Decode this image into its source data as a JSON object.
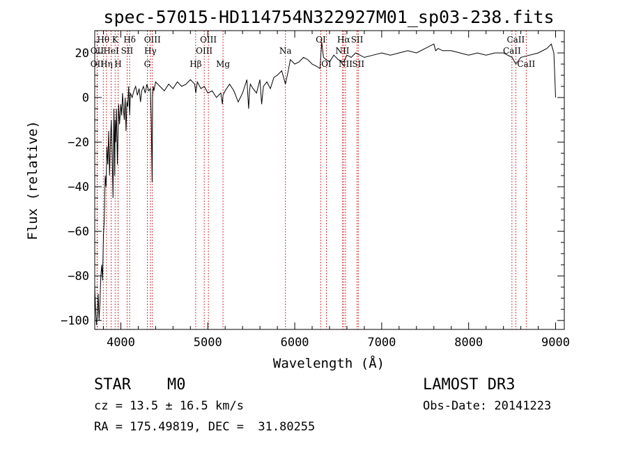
{
  "chart_data": {
    "type": "line",
    "title": "spec-57015-HD114754N322927M01_sp03-238.fits",
    "xlabel": "Wavelength (Å)",
    "ylabel": "Flux (relative)",
    "xlim": [
      3700,
      9100
    ],
    "ylim": [
      -104,
      30
    ],
    "x_ticks": [
      4000,
      5000,
      6000,
      7000,
      8000,
      9000
    ],
    "y_ticks": [
      -100,
      -80,
      -60,
      -40,
      -20,
      0,
      20
    ],
    "line_color": "#000000",
    "marker_color": "#cc0000",
    "spectrum": {
      "x": [
        3700,
        3710,
        3720,
        3730,
        3740,
        3750,
        3760,
        3770,
        3780,
        3790,
        3800,
        3810,
        3820,
        3830,
        3840,
        3850,
        3860,
        3870,
        3880,
        3890,
        3900,
        3910,
        3920,
        3930,
        3934,
        3940,
        3950,
        3960,
        3968,
        3975,
        3985,
        4000,
        4010,
        4020,
        4030,
        4040,
        4050,
        4060,
        4070,
        4080,
        4090,
        4101,
        4110,
        4130,
        4150,
        4170,
        4190,
        4210,
        4226,
        4240,
        4260,
        4280,
        4300,
        4320,
        4340,
        4350,
        4360,
        4365,
        4372,
        4380,
        4400,
        4450,
        4500,
        4550,
        4600,
        4650,
        4700,
        4750,
        4800,
        4850,
        4862,
        4880,
        4920,
        4960,
        5000,
        5050,
        5100,
        5150,
        5168,
        5175,
        5200,
        5250,
        5300,
        5350,
        5400,
        5450,
        5470,
        5480,
        5490,
        5520,
        5560,
        5600,
        5620,
        5640,
        5680,
        5720,
        5760,
        5800,
        5850,
        5893,
        5920,
        5950,
        6000,
        6050,
        6100,
        6150,
        6200,
        6250,
        6290,
        6310,
        6330,
        6360,
        6400,
        6450,
        6500,
        6563,
        6600,
        6650,
        6700,
        6750,
        6800,
        6900,
        7000,
        7100,
        7200,
        7300,
        7400,
        7500,
        7600,
        7620,
        7650,
        7700,
        7800,
        7900,
        8000,
        8100,
        8200,
        8300,
        8400,
        8500,
        8542,
        8600,
        8700,
        8800,
        8900,
        8950,
        8980,
        8990,
        9000
      ],
      "y": [
        -85,
        -95,
        -102,
        -98,
        -88,
        -100,
        -92,
        -80,
        -75,
        -82,
        -62,
        -55,
        -35,
        -40,
        -22,
        -30,
        -15,
        -35,
        -20,
        -10,
        -25,
        -45,
        -5,
        -35,
        -10,
        -20,
        -5,
        -30,
        -15,
        -3,
        -12,
        -3,
        -8,
        2,
        -5,
        -10,
        0,
        -15,
        -2,
        -4,
        5,
        -8,
        2,
        0,
        3,
        5,
        1,
        4,
        -2,
        3,
        5,
        2,
        6,
        3,
        4,
        -10,
        -38,
        0,
        5,
        3,
        7,
        5,
        3,
        6,
        4,
        7,
        5,
        6,
        8,
        6,
        2,
        7,
        4,
        5,
        2,
        3,
        0,
        2,
        -3,
        1,
        3,
        6,
        3,
        -2,
        2,
        8,
        -5,
        3,
        6,
        4,
        2,
        8,
        -3,
        5,
        7,
        4,
        9,
        10,
        12,
        6,
        11,
        17,
        15,
        16,
        18,
        17,
        15,
        14,
        13,
        25,
        18,
        17,
        16,
        19,
        17,
        16,
        19,
        18,
        20,
        19,
        18,
        19,
        20,
        19,
        20,
        21,
        20,
        22,
        24,
        21,
        22,
        21,
        21,
        20,
        19,
        20,
        19,
        20,
        20,
        18,
        15,
        18,
        19,
        20,
        22,
        24,
        20,
        10,
        0
      ]
    },
    "lines": [
      {
        "wl": 3798,
        "label": "Hθ",
        "row": 1
      },
      {
        "wl": 3727,
        "label": "OII",
        "row": 2
      },
      {
        "wl": 3727,
        "label": "OII",
        "row": 3
      },
      {
        "wl": 3835,
        "label": "Hη",
        "row": 3
      },
      {
        "wl": 3934,
        "label": "K",
        "row": 1
      },
      {
        "wl": 3889,
        "label": "HeI",
        "row": 2
      },
      {
        "wl": 3968,
        "label": "H",
        "row": 3
      },
      {
        "wl": 4072,
        "label": "SII",
        "row": 2
      },
      {
        "wl": 4101,
        "label": "Hδ",
        "row": 1
      },
      {
        "wl": 4340,
        "label": "Hγ",
        "row": 2
      },
      {
        "wl": 4363,
        "label": "OIII",
        "row": 1
      },
      {
        "wl": 4304,
        "label": "G",
        "row": 3
      },
      {
        "wl": 4861,
        "label": "Hβ",
        "row": 3
      },
      {
        "wl": 4959,
        "label": "OIII",
        "row": 2
      },
      {
        "wl": 5007,
        "label": "OIII",
        "row": 1
      },
      {
        "wl": 5175,
        "label": "Mg",
        "row": 3
      },
      {
        "wl": 5893,
        "label": "Na",
        "row": 2
      },
      {
        "wl": 6300,
        "label": "OI",
        "row": 1
      },
      {
        "wl": 6364,
        "label": "OI",
        "row": 3
      },
      {
        "wl": 6563,
        "label": "Hα",
        "row": 1
      },
      {
        "wl": 6548,
        "label": "NII",
        "row": 2
      },
      {
        "wl": 6584,
        "label": "NII",
        "row": 3
      },
      {
        "wl": 6717,
        "label": "SII",
        "row": 1
      },
      {
        "wl": 6731,
        "label": "SII",
        "row": 3
      },
      {
        "wl": 8542,
        "label": "CaII",
        "row": 1
      },
      {
        "wl": 8498,
        "label": "CaII",
        "row": 2
      },
      {
        "wl": 8662,
        "label": "CaII",
        "row": 3
      }
    ]
  },
  "info": {
    "object_class": "STAR",
    "subclass": "M0",
    "cz": "cz = 13.5 ± 16.5 km/s",
    "radec": "RA = 175.49819, DEC =  31.80255",
    "survey": "LAMOST DR3",
    "obs_date": "Obs-Date: 20141223"
  }
}
